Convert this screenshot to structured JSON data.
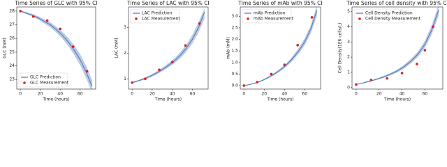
{
  "chart_data": [
    {
      "type": "line",
      "title": "Time Series of GLC with 95% CI",
      "xlabel": "Time (hours)",
      "ylabel": "GLC (mM)",
      "xlim": [
        -3.6,
        75.6
      ],
      "ylim": [
        22.3,
        28.3
      ],
      "xticks": [
        0,
        20,
        40,
        60
      ],
      "yticks": [
        23,
        24,
        25,
        26,
        27,
        28
      ],
      "legend": "lower left",
      "series": [
        {
          "name": "GLC Prediction",
          "color": "#4c72b0",
          "band_color": "#a9bde0",
          "x": [
            0,
            6,
            12,
            18,
            24,
            30,
            36,
            42,
            48,
            54,
            60,
            66,
            72
          ],
          "values": [
            28,
            27.85,
            27.7,
            27.5,
            27.25,
            27.0,
            26.65,
            26.25,
            25.75,
            25.15,
            24.45,
            23.55,
            22.5
          ],
          "lower": [
            27.95,
            27.78,
            27.6,
            27.38,
            27.1,
            26.82,
            26.44,
            26.0,
            25.45,
            24.8,
            24.05,
            23.1,
            22.05
          ],
          "upper": [
            28.05,
            27.92,
            27.8,
            27.62,
            27.4,
            27.18,
            26.86,
            26.5,
            26.05,
            25.5,
            24.85,
            24.0,
            22.95
          ]
        },
        {
          "name": "GLC Measurement",
          "color": "#e31a1c",
          "marker": "scatter",
          "x": [
            0,
            13,
            27,
            40,
            53,
            67
          ],
          "values": [
            28.0,
            27.6,
            27.3,
            26.7,
            25.4,
            23.6
          ]
        }
      ]
    },
    {
      "type": "line",
      "title": "Time Series of LAC with 95% CI",
      "xlabel": "Time (hours)",
      "ylabel": "LAC (mM)",
      "xlim": [
        -3.6,
        75.6
      ],
      "ylim": [
        0.6,
        3.8
      ],
      "xticks": [
        0,
        20,
        40,
        60
      ],
      "yticks": [
        1,
        2,
        3
      ],
      "legend": "upper left",
      "series": [
        {
          "name": "LAC Prediction",
          "color": "#4c72b0",
          "band_color": "#a9bde0",
          "x": [
            0,
            6,
            12,
            18,
            24,
            30,
            36,
            42,
            48,
            54,
            60,
            66,
            72
          ],
          "values": [
            0.85,
            0.92,
            1.0,
            1.1,
            1.22,
            1.36,
            1.52,
            1.7,
            1.92,
            2.2,
            2.55,
            3.0,
            3.6
          ],
          "lower": [
            0.82,
            0.89,
            0.96,
            1.05,
            1.16,
            1.29,
            1.44,
            1.6,
            1.8,
            2.06,
            2.38,
            2.8,
            3.35
          ],
          "upper": [
            0.88,
            0.95,
            1.04,
            1.15,
            1.28,
            1.43,
            1.6,
            1.8,
            2.04,
            2.34,
            2.72,
            3.2,
            3.75
          ]
        },
        {
          "name": "LAC Measurement",
          "color": "#e31a1c",
          "marker": "scatter",
          "x": [
            0,
            13,
            27,
            40,
            53,
            67
          ],
          "values": [
            0.85,
            1.0,
            1.35,
            1.65,
            2.3,
            3.15
          ]
        }
      ]
    },
    {
      "type": "line",
      "title": "Time Series of mAb with 95% CI",
      "xlabel": "Time (hours)",
      "ylabel": "mAb (mM)",
      "xlim": [
        -3.6,
        75.6
      ],
      "ylim": [
        -0.15,
        3.4
      ],
      "xticks": [
        0,
        20,
        40,
        60
      ],
      "yticks": [
        {
          "value": 0,
          "label": "0.0"
        },
        {
          "value": 0.5,
          "label": "0.5"
        },
        {
          "value": 1,
          "label": "1.0"
        },
        {
          "value": 1.5,
          "label": "1.5"
        },
        {
          "value": 2,
          "label": "2.0"
        },
        {
          "value": 2.5,
          "label": "2.5"
        },
        {
          "value": 3,
          "label": "3.0"
        }
      ],
      "legend": "upper left",
      "series": [
        {
          "name": "mAb Prediction",
          "color": "#4c72b0",
          "band_color": "#a9bde0",
          "x": [
            0,
            6,
            12,
            18,
            24,
            30,
            36,
            42,
            48,
            54,
            60,
            66,
            72
          ],
          "values": [
            0,
            0.05,
            0.12,
            0.22,
            0.35,
            0.5,
            0.68,
            0.9,
            1.17,
            1.5,
            1.9,
            2.45,
            3.25
          ],
          "lower": [
            0,
            0.04,
            0.1,
            0.19,
            0.31,
            0.45,
            0.62,
            0.82,
            1.07,
            1.38,
            1.75,
            2.27,
            3.02
          ],
          "upper": [
            0,
            0.06,
            0.14,
            0.25,
            0.39,
            0.55,
            0.74,
            0.98,
            1.27,
            1.62,
            2.05,
            2.63,
            3.48
          ]
        },
        {
          "name": "mAb Measurement",
          "color": "#e31a1c",
          "marker": "scatter",
          "x": [
            0,
            13,
            27,
            40,
            53,
            67
          ],
          "values": [
            0,
            0.15,
            0.5,
            0.9,
            1.75,
            2.95
          ]
        }
      ]
    },
    {
      "type": "line",
      "title": "Time Series of cell density with 95% CI",
      "xlabel": "Time (hours)",
      "ylabel": "Cell Density(1E6 cells/L)",
      "xlim": [
        -3.6,
        75.6
      ],
      "ylim": [
        -0.1,
        5.3
      ],
      "xticks": [
        0,
        20,
        40,
        60
      ],
      "yticks": [
        0,
        1,
        2,
        3,
        4,
        5
      ],
      "legend": "upper left",
      "series": [
        {
          "name": "Cell Density Prediction",
          "color": "#4c72b0",
          "band_color": "#a9bde0",
          "x": [
            0,
            6,
            12,
            18,
            24,
            30,
            36,
            42,
            48,
            54,
            60,
            66,
            72
          ],
          "values": [
            0.2,
            0.3,
            0.42,
            0.55,
            0.7,
            0.88,
            1.1,
            1.38,
            1.75,
            2.2,
            2.85,
            3.8,
            5.1
          ],
          "lower": [
            0.18,
            0.27,
            0.38,
            0.5,
            0.63,
            0.8,
            1.0,
            1.26,
            1.6,
            2.02,
            2.62,
            3.5,
            4.75
          ],
          "upper": [
            0.22,
            0.33,
            0.46,
            0.6,
            0.77,
            0.96,
            1.2,
            1.5,
            1.9,
            2.38,
            3.08,
            4.1,
            5.45
          ]
        },
        {
          "name": "Cell Density Measurement",
          "color": "#e31a1c",
          "marker": "scatter",
          "x": [
            0,
            13,
            27,
            40,
            53,
            60,
            67
          ],
          "values": [
            0.2,
            0.5,
            0.6,
            0.95,
            1.55,
            2.45,
            4.0
          ]
        }
      ]
    }
  ]
}
